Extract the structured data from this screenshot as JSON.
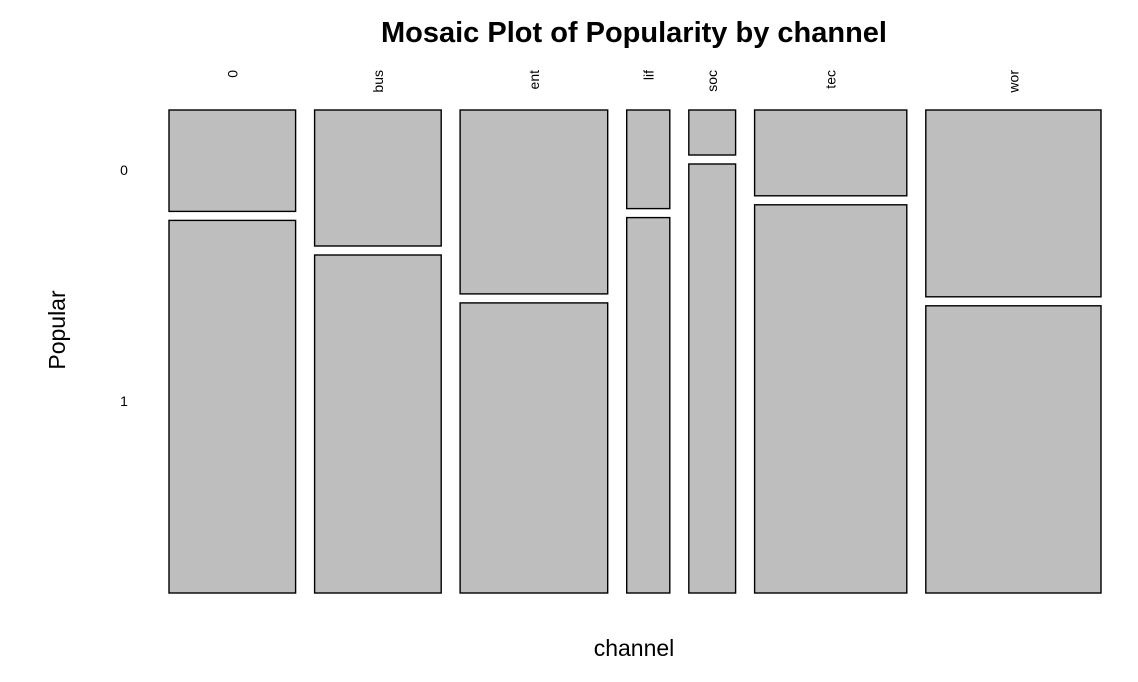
{
  "chart_data": {
    "type": "mosaic",
    "title": "Mosaic Plot of Popularity by channel",
    "xlabel": "channel",
    "ylabel": "Popular",
    "categories": [
      "0",
      "bus",
      "ent",
      "lif",
      "soc",
      "tec",
      "wor"
    ],
    "levels": [
      "0",
      "1"
    ],
    "column_share": [
      0.138,
      0.138,
      0.161,
      0.047,
      0.051,
      0.166,
      0.191
    ],
    "popular_0_share": [
      0.214,
      0.287,
      0.388,
      0.208,
      0.095,
      0.181,
      0.394
    ],
    "fill_color": "#bebebe",
    "stroke_color": "#000000"
  }
}
